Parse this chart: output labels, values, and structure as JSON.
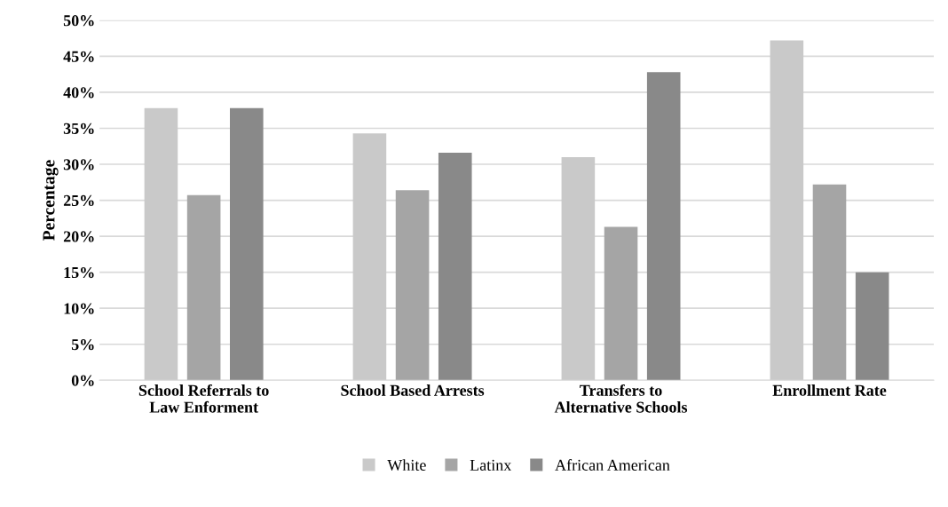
{
  "chart_data": {
    "type": "bar",
    "ylabel": "Percentage",
    "categories": [
      "School Referrals to\nLaw Enforment",
      "School Based Arrests",
      "Transfers to\nAlternative Schools",
      "Enrollment Rate"
    ],
    "series": [
      {
        "name": "White",
        "color": "#c9c9c9",
        "values": [
          37.8,
          34.3,
          31.0,
          47.2
        ]
      },
      {
        "name": "Latinx",
        "color": "#a5a5a5",
        "values": [
          25.7,
          26.4,
          21.3,
          27.2
        ]
      },
      {
        "name": "African American",
        "color": "#898989",
        "values": [
          37.8,
          31.6,
          42.8,
          15.0
        ]
      }
    ],
    "ylim": [
      0,
      50
    ],
    "yticks": [
      {
        "value": 0,
        "label": "0%"
      },
      {
        "value": 5,
        "label": "5%"
      },
      {
        "value": 10,
        "label": "10%"
      },
      {
        "value": 15,
        "label": "15%"
      },
      {
        "value": 20,
        "label": "20%"
      },
      {
        "value": 25,
        "label": "25%"
      },
      {
        "value": 30,
        "label": "30%"
      },
      {
        "value": 35,
        "label": "35%"
      },
      {
        "value": 40,
        "label": "40%"
      },
      {
        "value": 45,
        "label": "45%"
      },
      {
        "value": 50,
        "label": "50%"
      }
    ],
    "grid": "y",
    "legend": "bottom"
  }
}
